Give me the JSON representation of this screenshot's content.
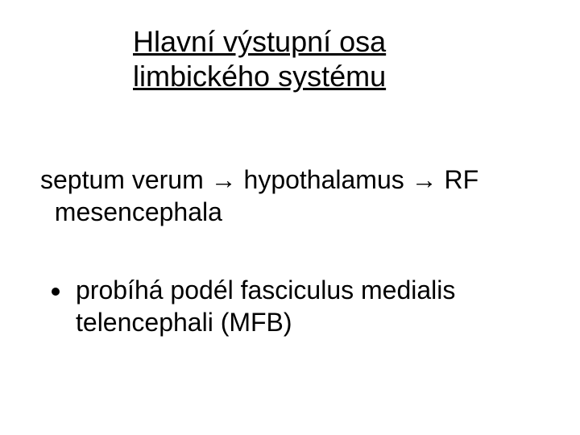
{
  "colors": {
    "background": "#ffffff",
    "text": "#000000"
  },
  "typography": {
    "family": "Arial, Helvetica, sans-serif",
    "title_fontsize_pt": 36,
    "body_fontsize_pt": 32
  },
  "title": {
    "line1": "Hlavní výstupní osa",
    "line2": "limbického systému"
  },
  "pathway": {
    "line1": "septum verum → hypothalamus → RF",
    "line2": "mesencephala"
  },
  "bullet": {
    "line1": "probíhá podél fasciculus medialis",
    "line2": "telencephali (MFB)"
  }
}
